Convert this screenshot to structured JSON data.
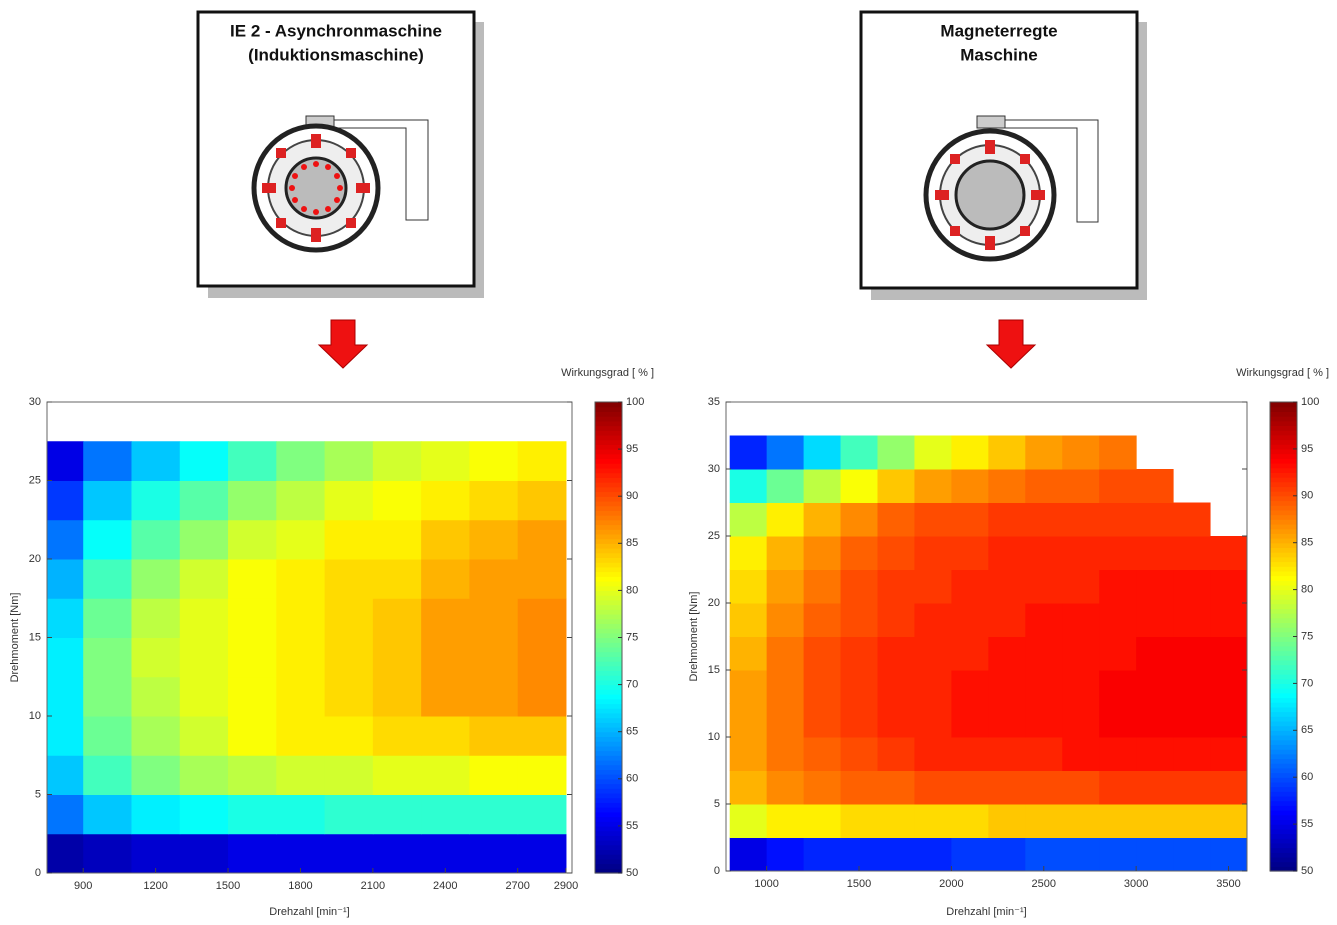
{
  "diagrams": [
    {
      "title_lines": [
        "IE 2 - Asynchronmaschine",
        "(Induktionsmaschine)"
      ]
    },
    {
      "title_lines": [
        "Magneterregte",
        "Maschine"
      ]
    }
  ],
  "chart_data": [
    {
      "type": "heatmap",
      "xlabel": "Drehzahl [min⁻¹]",
      "ylabel": "Drehmoment [Nm]",
      "colorbar_label": "Wirkungsgrad [ % ]",
      "xlim": [
        750,
        2925
      ],
      "ylim": [
        0,
        30
      ],
      "xticks": [
        900,
        1200,
        1500,
        1800,
        2100,
        2400,
        2700,
        2900
      ],
      "yticks": [
        0,
        5,
        10,
        15,
        20,
        25,
        30
      ],
      "clim": [
        50,
        100
      ],
      "cticks": [
        50,
        55,
        60,
        65,
        70,
        75,
        80,
        85,
        90,
        95,
        100
      ],
      "x": [
        800,
        1000,
        1200,
        1400,
        1600,
        1800,
        2000,
        2200,
        2400,
        2600,
        2800
      ],
      "y": [
        1.25,
        3.75,
        6.25,
        8.75,
        11.25,
        13.75,
        16.25,
        18.75,
        21.25,
        23.75,
        26.25
      ],
      "z": [
        [
          52,
          53,
          54,
          54,
          55,
          55,
          55,
          55,
          55,
          55,
          55
        ],
        [
          62,
          66,
          68,
          69,
          70,
          70,
          71,
          71,
          71,
          71,
          71
        ],
        [
          66,
          72,
          75,
          77,
          78,
          79,
          79,
          80,
          80,
          81,
          81
        ],
        [
          68,
          74,
          77,
          79,
          81,
          82,
          82,
          83,
          83,
          84,
          84
        ],
        [
          68,
          75,
          78,
          80,
          81,
          82,
          83,
          84,
          86,
          86,
          87
        ],
        [
          68,
          75,
          79,
          80,
          81,
          82,
          83,
          84,
          86,
          86,
          87
        ],
        [
          67,
          74,
          78,
          80,
          81,
          82,
          83,
          84,
          86,
          86,
          87
        ],
        [
          65,
          72,
          76,
          79,
          81,
          82,
          83,
          83,
          85,
          86,
          86
        ],
        [
          62,
          69,
          73,
          76,
          79,
          80,
          82,
          82,
          84,
          85,
          86
        ],
        [
          59,
          66,
          70,
          73,
          76,
          78,
          80,
          81,
          82,
          83,
          84
        ],
        [
          55,
          62,
          66,
          69,
          72,
          75,
          77,
          79,
          80,
          81,
          82
        ]
      ]
    },
    {
      "type": "heatmap",
      "xlabel": "Drehzahl [min⁻¹]",
      "ylabel": "Drehmoment [Nm]",
      "colorbar_label": "Wirkungsgrad [ % ]",
      "xlim": [
        780,
        3600
      ],
      "ylim": [
        0,
        35
      ],
      "xticks": [
        1000,
        1500,
        2000,
        2500,
        3000,
        3500
      ],
      "yticks": [
        0,
        5,
        10,
        15,
        20,
        25,
        30,
        35
      ],
      "clim": [
        50,
        100
      ],
      "cticks": [
        50,
        55,
        60,
        65,
        70,
        75,
        80,
        85,
        90,
        95,
        100
      ],
      "x": [
        900,
        1100,
        1300,
        1500,
        1700,
        1900,
        2100,
        2300,
        2500,
        2700,
        2900,
        3100,
        3300,
        3500
      ],
      "y": [
        1.25,
        3.75,
        6.25,
        8.75,
        11.25,
        13.75,
        16.25,
        18.75,
        21.25,
        23.75,
        26.25,
        28.75,
        31.25
      ],
      "z": [
        [
          55,
          57,
          58,
          58,
          58,
          58,
          59,
          59,
          60,
          60,
          60,
          60,
          60,
          60
        ],
        [
          80,
          82,
          82,
          83,
          83,
          83,
          83,
          84,
          84,
          84,
          84,
          84,
          84,
          84
        ],
        [
          85,
          87,
          88,
          89,
          89,
          90,
          90,
          90,
          90,
          90,
          91,
          91,
          91,
          91
        ],
        [
          86,
          88,
          89,
          90,
          91,
          92,
          92,
          92,
          92,
          93,
          93,
          93,
          93,
          93
        ],
        [
          86,
          88,
          90,
          91,
          92,
          92,
          93,
          93,
          93,
          93,
          94,
          94,
          94,
          94
        ],
        [
          86,
          88,
          90,
          91,
          92,
          92,
          93,
          93,
          93,
          93,
          94,
          94,
          94,
          94
        ],
        [
          85,
          88,
          90,
          91,
          92,
          92,
          92,
          93,
          93,
          93,
          93,
          94,
          94,
          94
        ],
        [
          84,
          87,
          89,
          90,
          91,
          92,
          92,
          92,
          93,
          93,
          93,
          93,
          93,
          93
        ],
        [
          83,
          86,
          88,
          90,
          91,
          91,
          92,
          92,
          92,
          92,
          93,
          93,
          93,
          93
        ],
        [
          82,
          85,
          87,
          89,
          90,
          91,
          91,
          92,
          92,
          92,
          92,
          92,
          92,
          92
        ],
        [
          78,
          82,
          85,
          87,
          89,
          90,
          90,
          91,
          91,
          91,
          91,
          91,
          91,
          null
        ],
        [
          70,
          74,
          78,
          81,
          84,
          86,
          87,
          88,
          89,
          89,
          90,
          90,
          null,
          null
        ],
        [
          58,
          62,
          67,
          72,
          76,
          80,
          82,
          84,
          86,
          87,
          88,
          null,
          null,
          null
        ]
      ]
    }
  ]
}
